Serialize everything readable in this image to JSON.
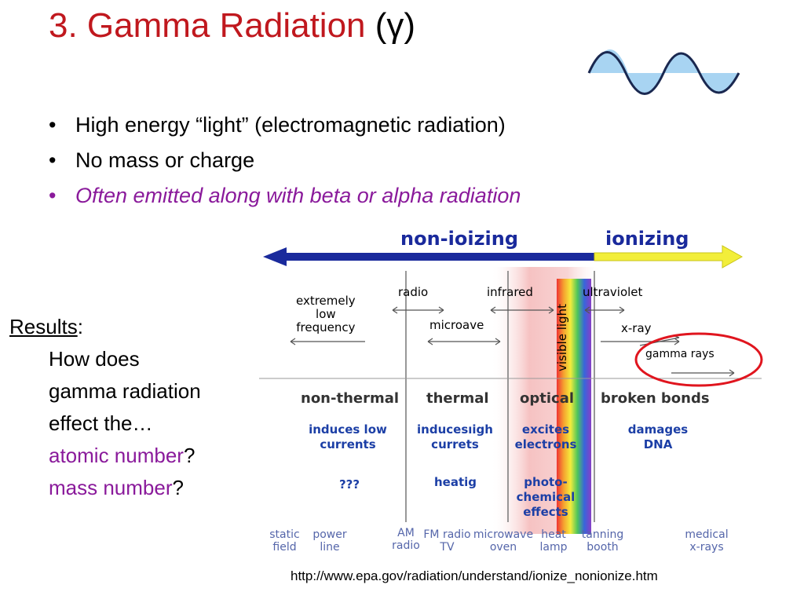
{
  "title": {
    "main": "3. Gamma Radiation",
    "symbol": "(γ)"
  },
  "bullets": [
    {
      "text": "High energy “light” (electromagnetic radiation)"
    },
    {
      "text": "No mass or charge"
    },
    {
      "text": "Often emitted along with beta or alpha radiation"
    }
  ],
  "results": {
    "label": "Results",
    "colon": ":",
    "lines": [
      "How does",
      "gamma radiation",
      "effect the…"
    ],
    "atomic": "atomic number",
    "mass": "mass number",
    "qmark": "?"
  },
  "diagram": {
    "non_ionizing": "non-ioizing",
    "ionizing": "ionizing",
    "bands": {
      "elf": "extremely\nlow\nfrequency",
      "radio": "radio",
      "microwave": "microave",
      "infrared": "infrared",
      "visible": "visible light",
      "ultraviolet": "ultraviolet",
      "xray": "x-ray",
      "gamma": "gamma rays"
    },
    "categories": {
      "nonthermal": "non-thermal",
      "thermal": "thermal",
      "optical": "optical",
      "broken": "broken bonds"
    },
    "effects": {
      "currents": "induces low\ncurrents",
      "high_currents": "inducesıigh\ncurrets",
      "electrons": "excites\nelectrons",
      "dna": "damages\nDNA",
      "unknown": "???",
      "heating": "heatig",
      "photo": "photo-\nchemical\neffects"
    },
    "sources": {
      "static": "static\nfield",
      "power": "power\nline",
      "am": "AM\nradio",
      "fm": "FM radio\nTV",
      "microwave": "microwave\noven",
      "heat": "heat\nlamp",
      "tanning": "tanning\nbooth",
      "medical": "medical\nx-rays"
    },
    "colors": {
      "non_ionizing": "#1a2a9c",
      "ionizing": "#f2ee3a",
      "circle": "#e0151e"
    }
  },
  "source_url": "http://www.epa.gov/radiation/understand/ionize_nonionize.htm"
}
